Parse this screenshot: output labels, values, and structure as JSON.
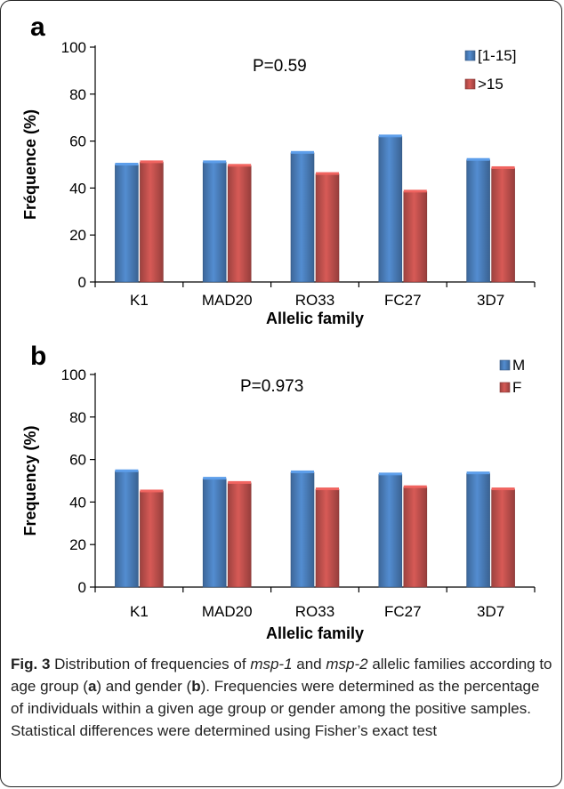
{
  "chart_data": [
    {
      "type": "bar",
      "panel_letter": "a",
      "title": "",
      "annotation": "P=0.59",
      "xlabel": "Allelic family",
      "ylabel": "Fréquence (%)",
      "ylim": [
        0,
        100
      ],
      "yticks": [
        0,
        20,
        40,
        60,
        80,
        100
      ],
      "grid": false,
      "legend_position": "top-right",
      "categories": [
        "K1",
        "MAD20",
        "RO33",
        "FC27",
        "3D7"
      ],
      "series": [
        {
          "name": "[1-15]",
          "color": "#4a7ebb",
          "values": [
            50,
            51,
            55,
            62,
            52
          ]
        },
        {
          "name": ">15",
          "color": "#c0504d",
          "values": [
            51,
            49.5,
            46,
            38.5,
            48.5
          ]
        }
      ]
    },
    {
      "type": "bar",
      "panel_letter": "b",
      "title": "",
      "annotation": "P=0.973",
      "xlabel": "Allelic family",
      "ylabel": "Frequency (%)",
      "ylim": [
        0,
        100
      ],
      "yticks": [
        0,
        20,
        40,
        60,
        80,
        100
      ],
      "grid": false,
      "legend_position": "top-right",
      "categories": [
        "K1",
        "MAD20",
        "RO33",
        "FC27",
        "3D7"
      ],
      "series": [
        {
          "name": "M",
          "color": "#4a7ebb",
          "values": [
            54.5,
            51,
            54,
            53,
            53.5
          ]
        },
        {
          "name": "F",
          "color": "#c0504d",
          "values": [
            45,
            49,
            46,
            47,
            46
          ]
        }
      ]
    }
  ],
  "caption": {
    "label": "Fig. 3",
    "text_1": " Distribution of frequencies of ",
    "gene_1": "msp-1",
    "text_2": " and ",
    "gene_2": "msp-2",
    "text_3": " allelic families according to age group (",
    "ref_a": "a",
    "text_4": ") and gender (",
    "ref_b": "b",
    "text_5": "). Frequencies were determined as the percentage of individuals within a given age group or gender among the positive samples. Statistical differences were determined using Fisher’s exact test"
  }
}
